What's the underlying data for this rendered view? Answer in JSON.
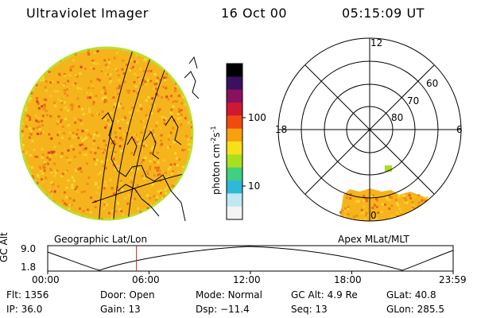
{
  "header": {
    "instrument": "Ultraviolet Imager",
    "date": "16 Oct 00",
    "time": "05:15:09 UT"
  },
  "colorbar": {
    "label": "photon cm-2s-1",
    "ticks": [
      "100",
      "10"
    ],
    "colors": [
      "#000000",
      "#3a1060",
      "#8a1060",
      "#d01830",
      "#f04a10",
      "#f8a010",
      "#f8e018",
      "#a8e020",
      "#40d080",
      "#30b8d8",
      "#c0e8f0",
      "#f4f4f4"
    ]
  },
  "geo_panel": {
    "caption": "Geographic Lat/Lon",
    "disk_color": "#f6b41c",
    "limb_color": "#b8e030"
  },
  "polar_panel": {
    "caption": "Apex MLat/MLT",
    "mlt_labels": {
      "top": "12",
      "left": "18",
      "right": "6",
      "bottom": "0"
    },
    "lat_labels": [
      "60",
      "70",
      "80"
    ]
  },
  "altitude_strip": {
    "axis_label": "GC Alt",
    "y_ticks": [
      "9.0",
      "1.8"
    ],
    "x_ticks": [
      "00:00",
      "06:00",
      "12:00",
      "18:00",
      "23:59"
    ],
    "current_marker_fraction": 0.219,
    "marker_color": "#c02020"
  },
  "info": {
    "row1": [
      {
        "label": "Flt:",
        "value": "1356"
      },
      {
        "label": "Door:",
        "value": "Open"
      },
      {
        "label": "Mode:",
        "value": "Normal"
      },
      {
        "label": "GC Alt:",
        "value": "4.9 Re"
      },
      {
        "label": "GLat:",
        "value": "40.8"
      }
    ],
    "row2": [
      {
        "label": "IP:",
        "value": "36.0"
      },
      {
        "label": "Gain:",
        "value": "13"
      },
      {
        "label": "Dsp:",
        "value": "−11.4"
      },
      {
        "label": "Seq:",
        "value": "13"
      },
      {
        "label": "GLon:",
        "value": "285.5"
      }
    ]
  }
}
